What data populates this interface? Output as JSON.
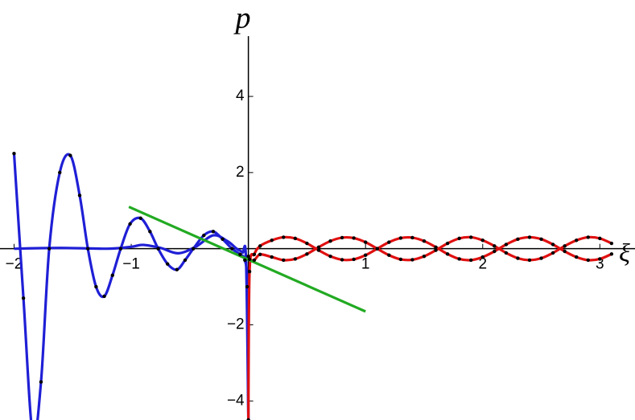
{
  "chart_data": {
    "type": "line",
    "xlabel": "ξ",
    "ylabel": "p",
    "xlim": [
      -2.12,
      3.3
    ],
    "ylim": [
      -4.5,
      5.9
    ],
    "xticks": [
      {
        "value": -2,
        "label": "−2"
      },
      {
        "value": -1,
        "label": "−1"
      },
      1,
      2,
      3
    ],
    "yticks": [
      {
        "value": -4,
        "label": "−4"
      },
      {
        "value": -2,
        "label": "−2"
      },
      2,
      4
    ],
    "series": [
      {
        "color": "#1f1fd6",
        "markers": false,
        "x": [
          -2.0,
          -1.6,
          -1.2,
          -1.0,
          -0.9,
          -0.75,
          -0.6,
          -0.45,
          -0.3,
          -0.18,
          -0.1,
          -0.05,
          -0.02,
          0
        ],
        "values": [
          0,
          0.02,
          0,
          0.05,
          0.1,
          0.02,
          -0.12,
          0.05,
          0.35,
          0.2,
          0,
          -0.1,
          -0.3,
          -4.5
        ]
      },
      {
        "color": "#1f1fd6",
        "markers": true,
        "x": [
          -2.0,
          -1.92,
          -1.84,
          -1.77,
          -1.7,
          -1.61,
          -1.52,
          -1.44,
          -1.37,
          -1.3,
          -1.23,
          -1.16,
          -1.09,
          -1.01,
          -0.92,
          -0.84,
          -0.77,
          -0.69,
          -0.61,
          -0.54,
          -0.47,
          -0.38,
          -0.3,
          -0.22,
          -0.14,
          -0.07,
          -0.03,
          -0.01,
          0
        ],
        "values": [
          2.5,
          -1.3,
          -4.9,
          -3.5,
          0,
          2.0,
          2.45,
          1.4,
          0,
          -1.0,
          -1.25,
          -0.7,
          0,
          0.65,
          0.8,
          0.45,
          0,
          -0.4,
          -0.55,
          -0.3,
          0,
          0.35,
          0.45,
          0.25,
          0,
          -0.15,
          -0.3,
          -1.0,
          -4.5
        ]
      },
      {
        "color": "#e01010",
        "markers": true,
        "x": [
          0,
          0.01,
          0.05,
          0.1,
          0.2,
          0.3,
          0.4,
          0.5,
          0.6,
          0.7,
          0.8,
          0.9,
          1.0,
          1.1,
          1.2,
          1.3,
          1.4,
          1.5,
          1.6,
          1.7,
          1.8,
          1.9,
          2.0,
          2.1,
          2.2,
          2.3,
          2.4,
          2.5,
          2.6,
          2.7,
          2.8,
          2.9,
          3.0,
          3.1
        ],
        "values": [
          -4.5,
          -0.6,
          -0.15,
          0.07,
          0.22,
          0.3,
          0.27,
          0.14,
          -0.04,
          -0.2,
          -0.29,
          -0.28,
          -0.17,
          0,
          0.17,
          0.28,
          0.29,
          0.2,
          0.04,
          -0.14,
          -0.27,
          -0.3,
          -0.22,
          -0.07,
          0.11,
          0.25,
          0.3,
          0.25,
          0.11,
          -0.07,
          -0.22,
          -0.3,
          -0.27,
          -0.14
        ]
      },
      {
        "color": "#e01010",
        "markers": true,
        "x": [
          0,
          0.01,
          0.05,
          0.1,
          0.2,
          0.3,
          0.4,
          0.5,
          0.6,
          0.7,
          0.8,
          0.9,
          1.0,
          1.1,
          1.2,
          1.3,
          1.4,
          1.5,
          1.6,
          1.7,
          1.8,
          1.9,
          2.0,
          2.1,
          2.2,
          2.3,
          2.4,
          2.5,
          2.6,
          2.7,
          2.8,
          2.9,
          3.0,
          3.1
        ],
        "values": [
          -0.2,
          -0.28,
          -0.3,
          -0.15,
          -0.22,
          -0.3,
          -0.27,
          -0.14,
          0.04,
          0.2,
          0.29,
          0.28,
          0.17,
          0,
          -0.17,
          -0.28,
          -0.29,
          -0.2,
          -0.04,
          0.14,
          0.27,
          0.3,
          0.22,
          0.07,
          -0.11,
          -0.25,
          -0.3,
          -0.25,
          -0.11,
          0.07,
          0.22,
          0.3,
          0.27,
          0.14
        ]
      },
      {
        "color": "#22aa22",
        "markers": false,
        "x": [
          -1.02,
          1.0
        ],
        "values": [
          1.1,
          -1.65
        ]
      }
    ]
  }
}
